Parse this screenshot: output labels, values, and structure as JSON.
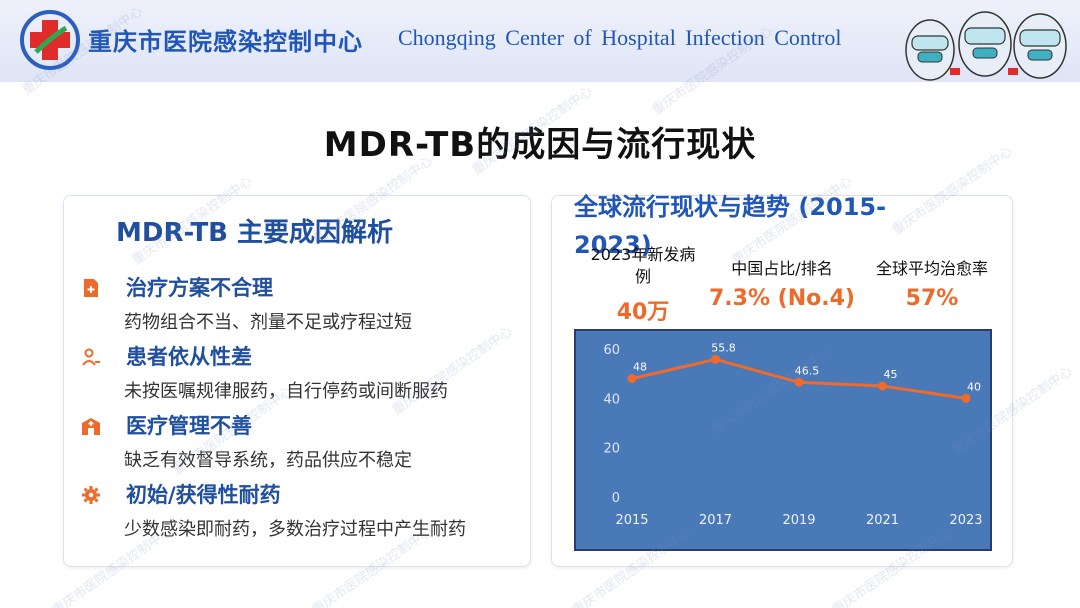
{
  "header": {
    "org_name_cn": "重庆市医院感染控制中心",
    "org_name_en": "Chongqing  Center of  Hospital Infection  Control"
  },
  "page_title": "MDR-TB的成因与流行现状",
  "left_card": {
    "title": "MDR-TB 主要成因解析",
    "causes": [
      {
        "icon": "document-plus-icon",
        "title": "治疗方案不合理",
        "desc": "药物组合不当、剂量不足或疗程过短"
      },
      {
        "icon": "user-icon",
        "title": "患者依从性差",
        "desc": "未按医嘱规律服药，自行停药或间断服药"
      },
      {
        "icon": "hospital-icon",
        "title": "医疗管理不善",
        "desc": "缺乏有效督导系统，药品供应不稳定"
      },
      {
        "icon": "gear-icon",
        "title": "初始/获得性耐药",
        "desc": "少数感染即耐药，多数治疗过程中产生耐药"
      }
    ]
  },
  "right_card": {
    "title": "全球流行现状与趋势 (2015-2023)",
    "stats": [
      {
        "label": "2023年新发病例",
        "value": "40万"
      },
      {
        "label": "中国占比/排名",
        "value": "7.3% (No.4)"
      },
      {
        "label": "全球平均治愈率",
        "value": "57%"
      }
    ]
  },
  "colors": {
    "accent": "#1f56b8",
    "highlight": "#ee6a2a",
    "chart_bg": "#4a79b8"
  },
  "watermark_text": "重庆市医院感染控制中心",
  "chart_data": {
    "type": "line",
    "x": [
      "2015",
      "2017",
      "2019",
      "2021",
      "2023"
    ],
    "series": [
      {
        "values": [
          48,
          55.8,
          46.5,
          45,
          40
        ]
      }
    ],
    "data_labels": [
      "48",
      "55.8",
      "46.5",
      "45",
      "40"
    ],
    "ylim": [
      0,
      60
    ],
    "yticks": [
      "0",
      "20",
      "40",
      "60"
    ],
    "title": "",
    "xlabel": "",
    "ylabel": "",
    "grid": false
  }
}
